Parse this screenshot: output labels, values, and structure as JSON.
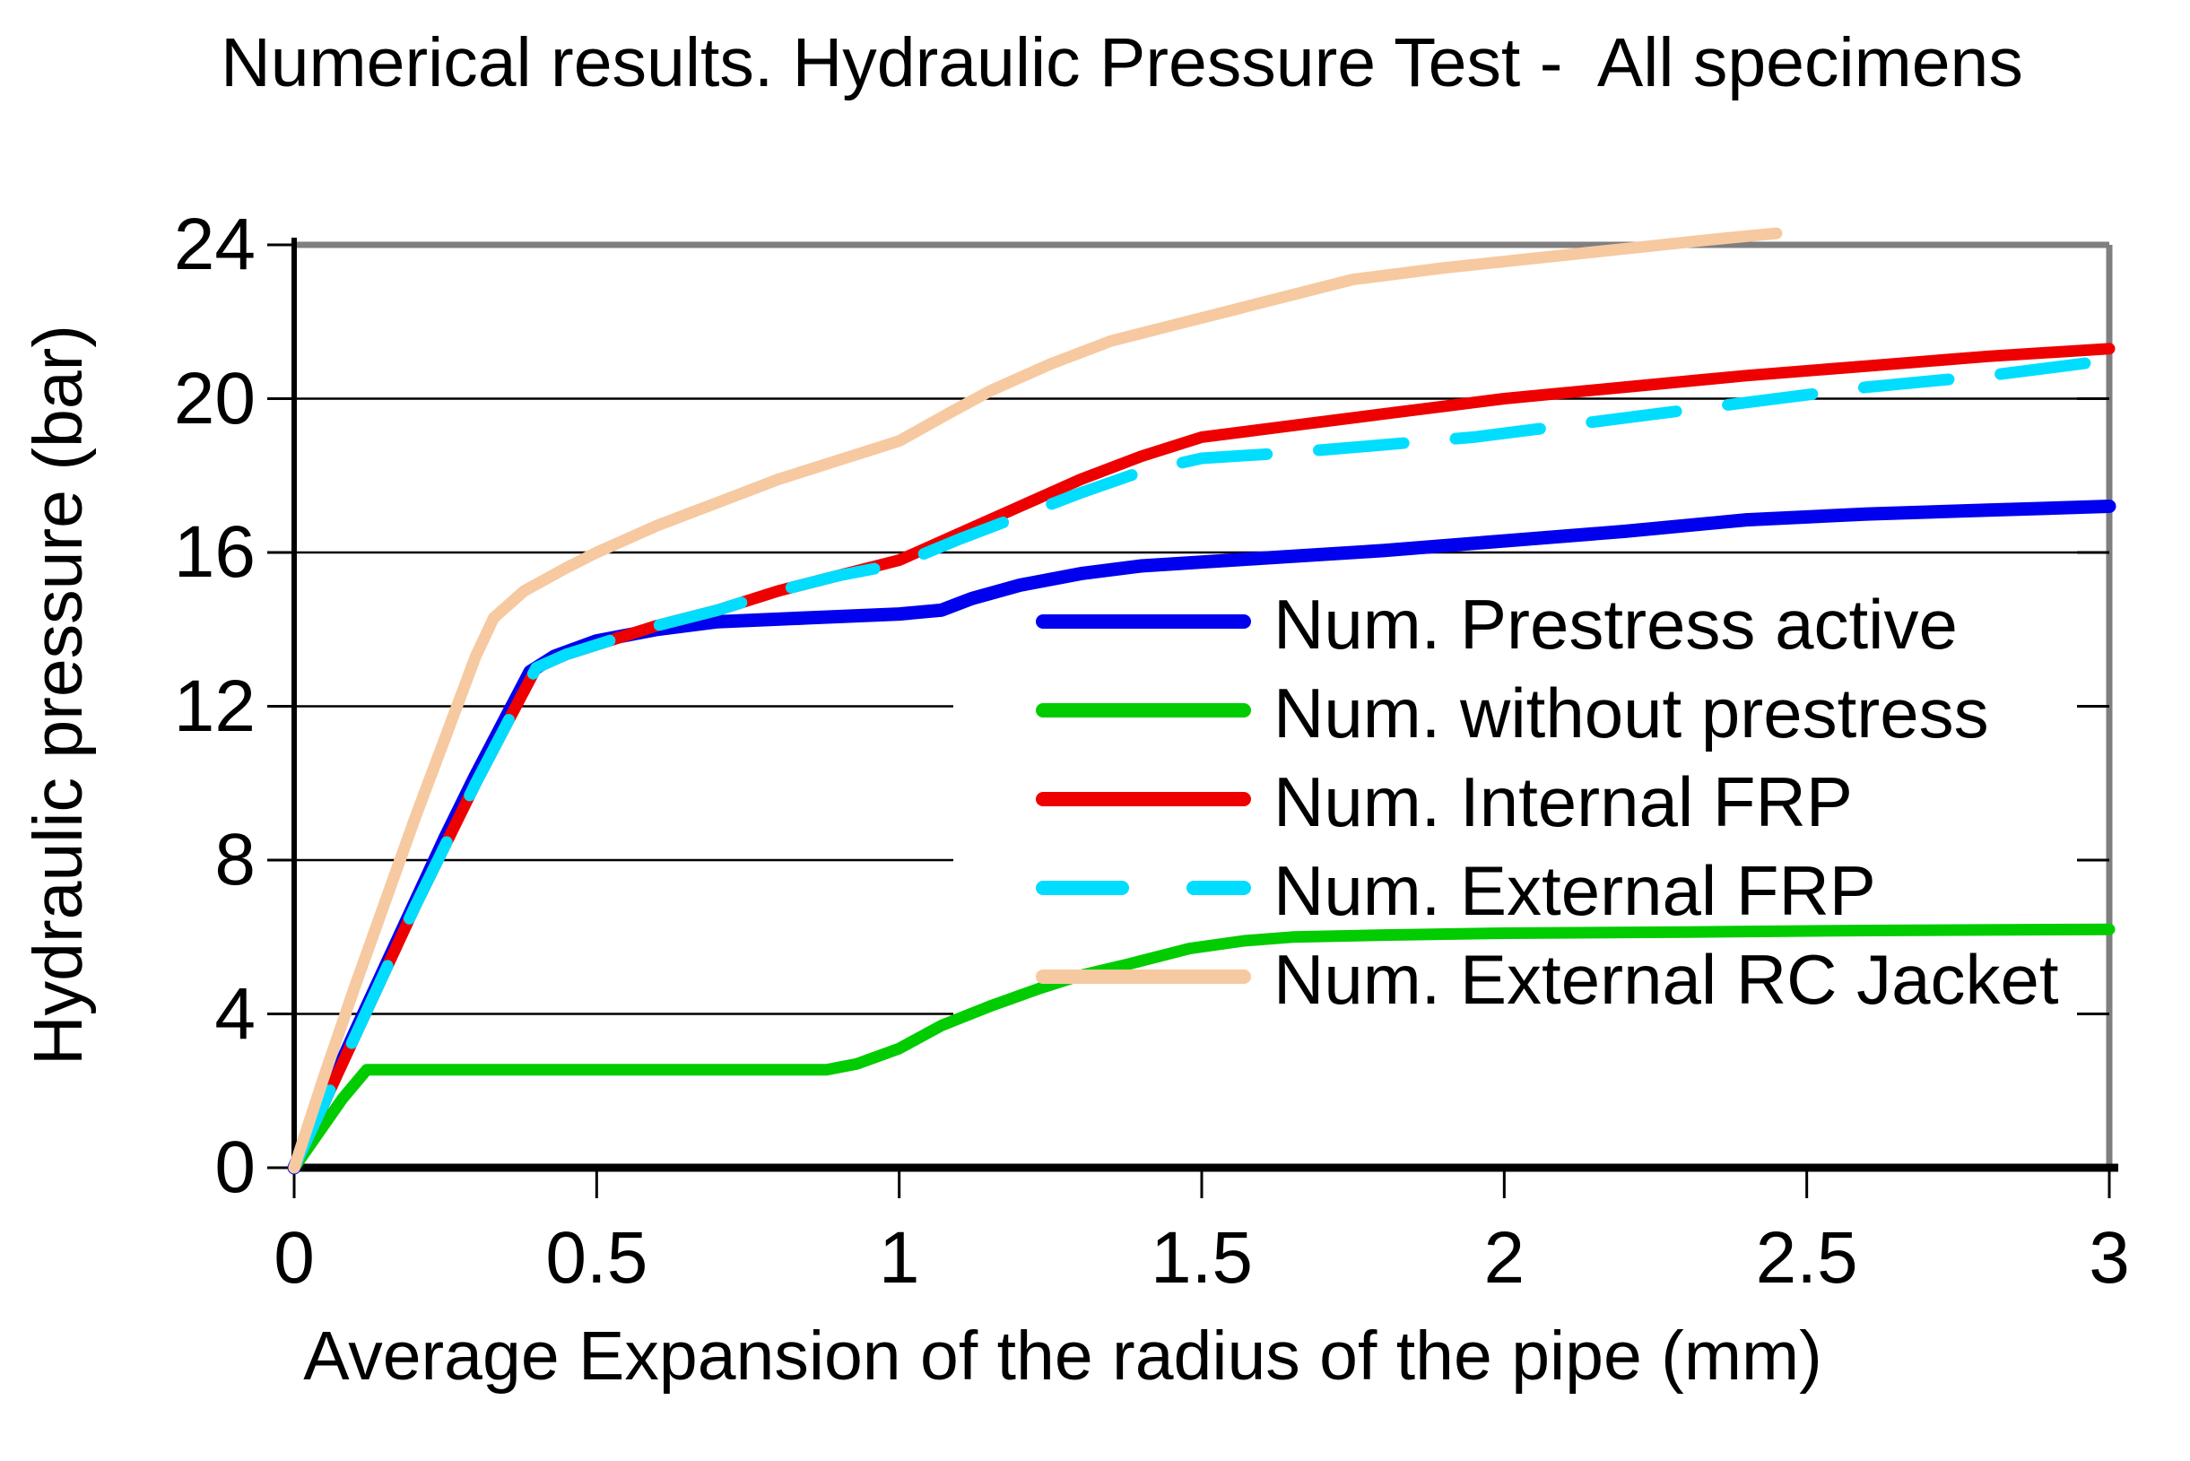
{
  "chart_data": {
    "type": "line",
    "title": "Numerical results. Hydraulic Pressure Test -  All specimens",
    "xlabel": "Average Expansion of the radius of the pipe (mm)",
    "ylabel": "Hydraulic pressure (bar)",
    "xlim": [
      0,
      3
    ],
    "ylim": [
      0,
      24
    ],
    "x_ticks": [
      "0",
      "0.5",
      "1",
      "1.5",
      "2",
      "2.5",
      "3"
    ],
    "x_tick_values": [
      0,
      0.5,
      1,
      1.5,
      2,
      2.5,
      3
    ],
    "y_ticks": [
      "0",
      "4",
      "8",
      "12",
      "16",
      "20",
      "24"
    ],
    "y_tick_values": [
      0,
      4,
      8,
      12,
      16,
      20,
      24
    ],
    "grid": "horizontal",
    "legend_position": "middle-right-inside",
    "series": [
      {
        "name": "Num. Prestress active",
        "color": "#0000ee",
        "dashed": false,
        "points": [
          [
            0,
            0
          ],
          [
            0.05,
            1.75
          ],
          [
            0.1,
            3.5
          ],
          [
            0.15,
            5.2
          ],
          [
            0.2,
            6.9
          ],
          [
            0.25,
            8.6
          ],
          [
            0.3,
            10.2
          ],
          [
            0.35,
            11.7
          ],
          [
            0.39,
            12.9
          ],
          [
            0.43,
            13.3
          ],
          [
            0.5,
            13.7
          ],
          [
            0.6,
            14.0
          ],
          [
            0.7,
            14.2
          ],
          [
            0.85,
            14.3
          ],
          [
            1.0,
            14.4
          ],
          [
            1.07,
            14.5
          ],
          [
            1.12,
            14.8
          ],
          [
            1.2,
            15.15
          ],
          [
            1.3,
            15.45
          ],
          [
            1.4,
            15.65
          ],
          [
            1.5,
            15.75
          ],
          [
            1.6,
            15.85
          ],
          [
            1.8,
            16.05
          ],
          [
            2.0,
            16.3
          ],
          [
            2.2,
            16.55
          ],
          [
            2.4,
            16.85
          ],
          [
            2.6,
            17.0
          ],
          [
            2.8,
            17.1
          ],
          [
            3.0,
            17.2
          ]
        ]
      },
      {
        "name": "Num. without prestress",
        "color": "#00cc00",
        "dashed": false,
        "points": [
          [
            0,
            0
          ],
          [
            0.04,
            0.9
          ],
          [
            0.08,
            1.8
          ],
          [
            0.12,
            2.55
          ],
          [
            0.5,
            2.55
          ],
          [
            0.88,
            2.55
          ],
          [
            0.93,
            2.7
          ],
          [
            1.0,
            3.1
          ],
          [
            1.07,
            3.7
          ],
          [
            1.15,
            4.2
          ],
          [
            1.23,
            4.65
          ],
          [
            1.3,
            5.0
          ],
          [
            1.38,
            5.3
          ],
          [
            1.48,
            5.7
          ],
          [
            1.57,
            5.9
          ],
          [
            1.65,
            6.0
          ],
          [
            1.8,
            6.05
          ],
          [
            2.0,
            6.1
          ],
          [
            2.3,
            6.13
          ],
          [
            2.6,
            6.17
          ],
          [
            3.0,
            6.2
          ]
        ]
      },
      {
        "name": "Num. Internal FRP",
        "color": "#ee0000",
        "dashed": false,
        "points": [
          [
            0,
            0
          ],
          [
            0.05,
            1.7
          ],
          [
            0.1,
            3.4
          ],
          [
            0.15,
            5.1
          ],
          [
            0.2,
            6.8
          ],
          [
            0.25,
            8.4
          ],
          [
            0.3,
            10.0
          ],
          [
            0.35,
            11.5
          ],
          [
            0.4,
            13.0
          ],
          [
            0.45,
            13.35
          ],
          [
            0.5,
            13.6
          ],
          [
            0.6,
            14.1
          ],
          [
            0.7,
            14.5
          ],
          [
            0.8,
            15.0
          ],
          [
            0.9,
            15.4
          ],
          [
            1.0,
            15.8
          ],
          [
            1.1,
            16.5
          ],
          [
            1.2,
            17.2
          ],
          [
            1.3,
            17.9
          ],
          [
            1.4,
            18.5
          ],
          [
            1.5,
            19.0
          ],
          [
            1.6,
            19.2
          ],
          [
            1.7,
            19.4
          ],
          [
            1.8,
            19.6
          ],
          [
            1.9,
            19.8
          ],
          [
            2.0,
            20.0
          ],
          [
            2.2,
            20.3
          ],
          [
            2.4,
            20.6
          ],
          [
            2.6,
            20.85
          ],
          [
            2.8,
            21.1
          ],
          [
            3.0,
            21.3
          ]
        ]
      },
      {
        "name": "Num. External FRP",
        "color": "#00ddff",
        "dashed": true,
        "points": [
          [
            0,
            0
          ],
          [
            0.05,
            1.7
          ],
          [
            0.1,
            3.4
          ],
          [
            0.15,
            5.1
          ],
          [
            0.2,
            6.8
          ],
          [
            0.25,
            8.4
          ],
          [
            0.3,
            10.0
          ],
          [
            0.35,
            11.5
          ],
          [
            0.4,
            13.0
          ],
          [
            0.45,
            13.35
          ],
          [
            0.5,
            13.6
          ],
          [
            0.6,
            14.1
          ],
          [
            0.7,
            14.5
          ],
          [
            0.8,
            15.0
          ],
          [
            0.9,
            15.4
          ],
          [
            1.0,
            15.7
          ],
          [
            1.1,
            16.35
          ],
          [
            1.2,
            16.95
          ],
          [
            1.3,
            17.55
          ],
          [
            1.4,
            18.1
          ],
          [
            1.5,
            18.45
          ],
          [
            1.65,
            18.6
          ],
          [
            1.8,
            18.8
          ],
          [
            1.95,
            19.0
          ],
          [
            2.1,
            19.3
          ],
          [
            2.25,
            19.6
          ],
          [
            2.4,
            19.9
          ],
          [
            2.6,
            20.3
          ],
          [
            2.8,
            20.6
          ],
          [
            3.0,
            21.0
          ]
        ]
      },
      {
        "name": "Num. External RC Jacket",
        "color": "#f6c9a0",
        "dashed": false,
        "points": [
          [
            0,
            0
          ],
          [
            0.05,
            2.4
          ],
          [
            0.1,
            4.7
          ],
          [
            0.15,
            6.9
          ],
          [
            0.2,
            9.1
          ],
          [
            0.25,
            11.2
          ],
          [
            0.3,
            13.3
          ],
          [
            0.33,
            14.3
          ],
          [
            0.38,
            15.0
          ],
          [
            0.45,
            15.6
          ],
          [
            0.5,
            16.0
          ],
          [
            0.6,
            16.7
          ],
          [
            0.7,
            17.3
          ],
          [
            0.8,
            17.9
          ],
          [
            0.9,
            18.4
          ],
          [
            1.0,
            18.9
          ],
          [
            1.08,
            19.6
          ],
          [
            1.15,
            20.2
          ],
          [
            1.25,
            20.9
          ],
          [
            1.35,
            21.5
          ],
          [
            1.45,
            21.9
          ],
          [
            1.55,
            22.3
          ],
          [
            1.65,
            22.7
          ],
          [
            1.75,
            23.1
          ],
          [
            1.9,
            23.4
          ],
          [
            2.05,
            23.65
          ],
          [
            2.2,
            23.9
          ],
          [
            2.35,
            24.15
          ],
          [
            2.45,
            24.3
          ]
        ]
      }
    ],
    "colors": {
      "axis": "#000000",
      "frame": "#7f7f7f",
      "gridline": "#000000",
      "background": "#ffffff"
    }
  }
}
